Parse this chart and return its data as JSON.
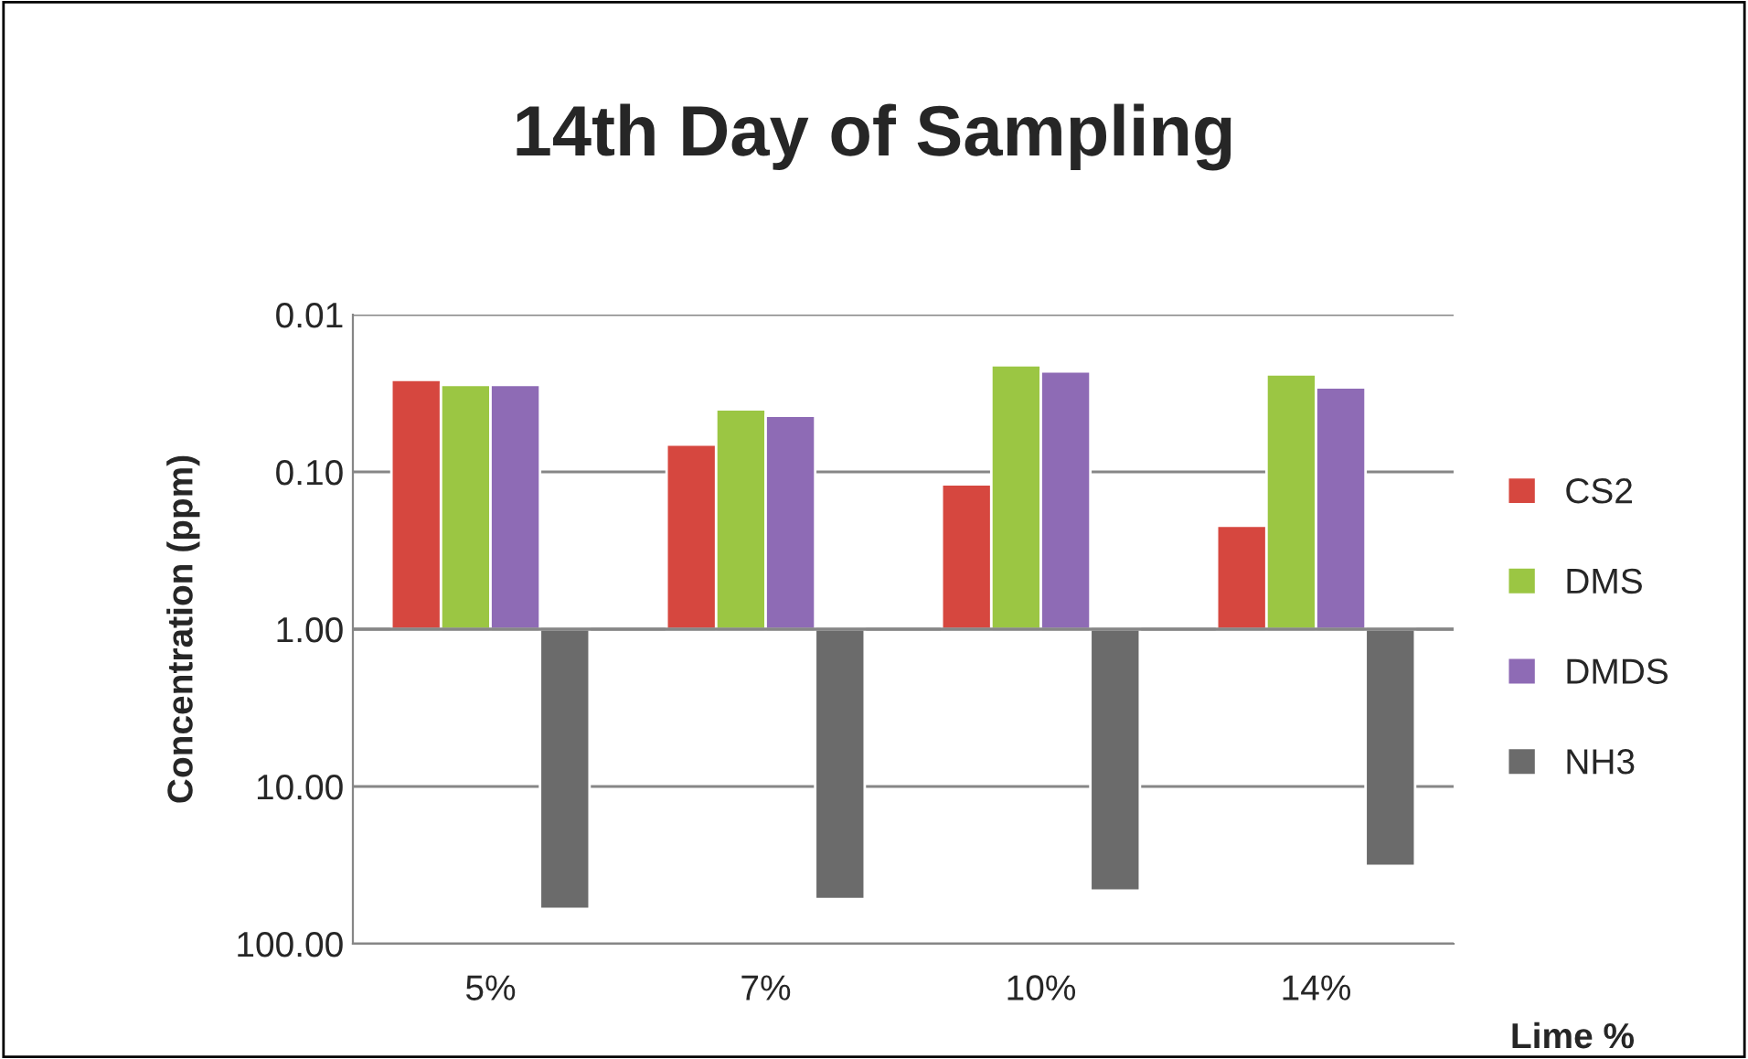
{
  "chart_data": {
    "type": "bar",
    "title": "14th Day of Sampling",
    "xlabel": "Lime %",
    "ylabel": "Concentration (ppm)",
    "categories": [
      "5%",
      "7%",
      "10%",
      "14%"
    ],
    "series": [
      {
        "name": "CS2",
        "color": "#d6473f",
        "base": [
          1,
          1,
          1,
          1
        ],
        "values": [
          -0.974,
          -0.933,
          -0.88,
          -0.78
        ]
      },
      {
        "name": "DMS",
        "color": "#9bc643",
        "base": [
          1,
          1,
          1,
          1
        ],
        "values": [
          -0.972,
          -0.96,
          -0.979,
          -0.976
        ]
      },
      {
        "name": "DMDS",
        "color": "#8e6bb5",
        "base": [
          1,
          1,
          1,
          1
        ],
        "values": [
          -0.972,
          -0.956,
          -0.977,
          -0.971
        ]
      },
      {
        "name": "NH3",
        "color": "#6b6b6b",
        "base": [
          1,
          1,
          1,
          1
        ],
        "values": [
          59,
          51,
          45,
          31
        ]
      }
    ],
    "log": "y",
    "ylim": [
      100,
      0.01
    ],
    "yticks": [
      {
        "value": 0.01,
        "label": "0.01"
      },
      {
        "value": 0.1,
        "label": "0.10"
      },
      {
        "value": 1,
        "label": "1.00"
      },
      {
        "value": 10,
        "label": "10.00"
      },
      {
        "value": 100,
        "label": "100.00"
      }
    ],
    "ref_lines": [
      {
        "axis": "y",
        "value": 1,
        "color": "#868686"
      }
    ],
    "grid": "y",
    "legend": "right"
  }
}
